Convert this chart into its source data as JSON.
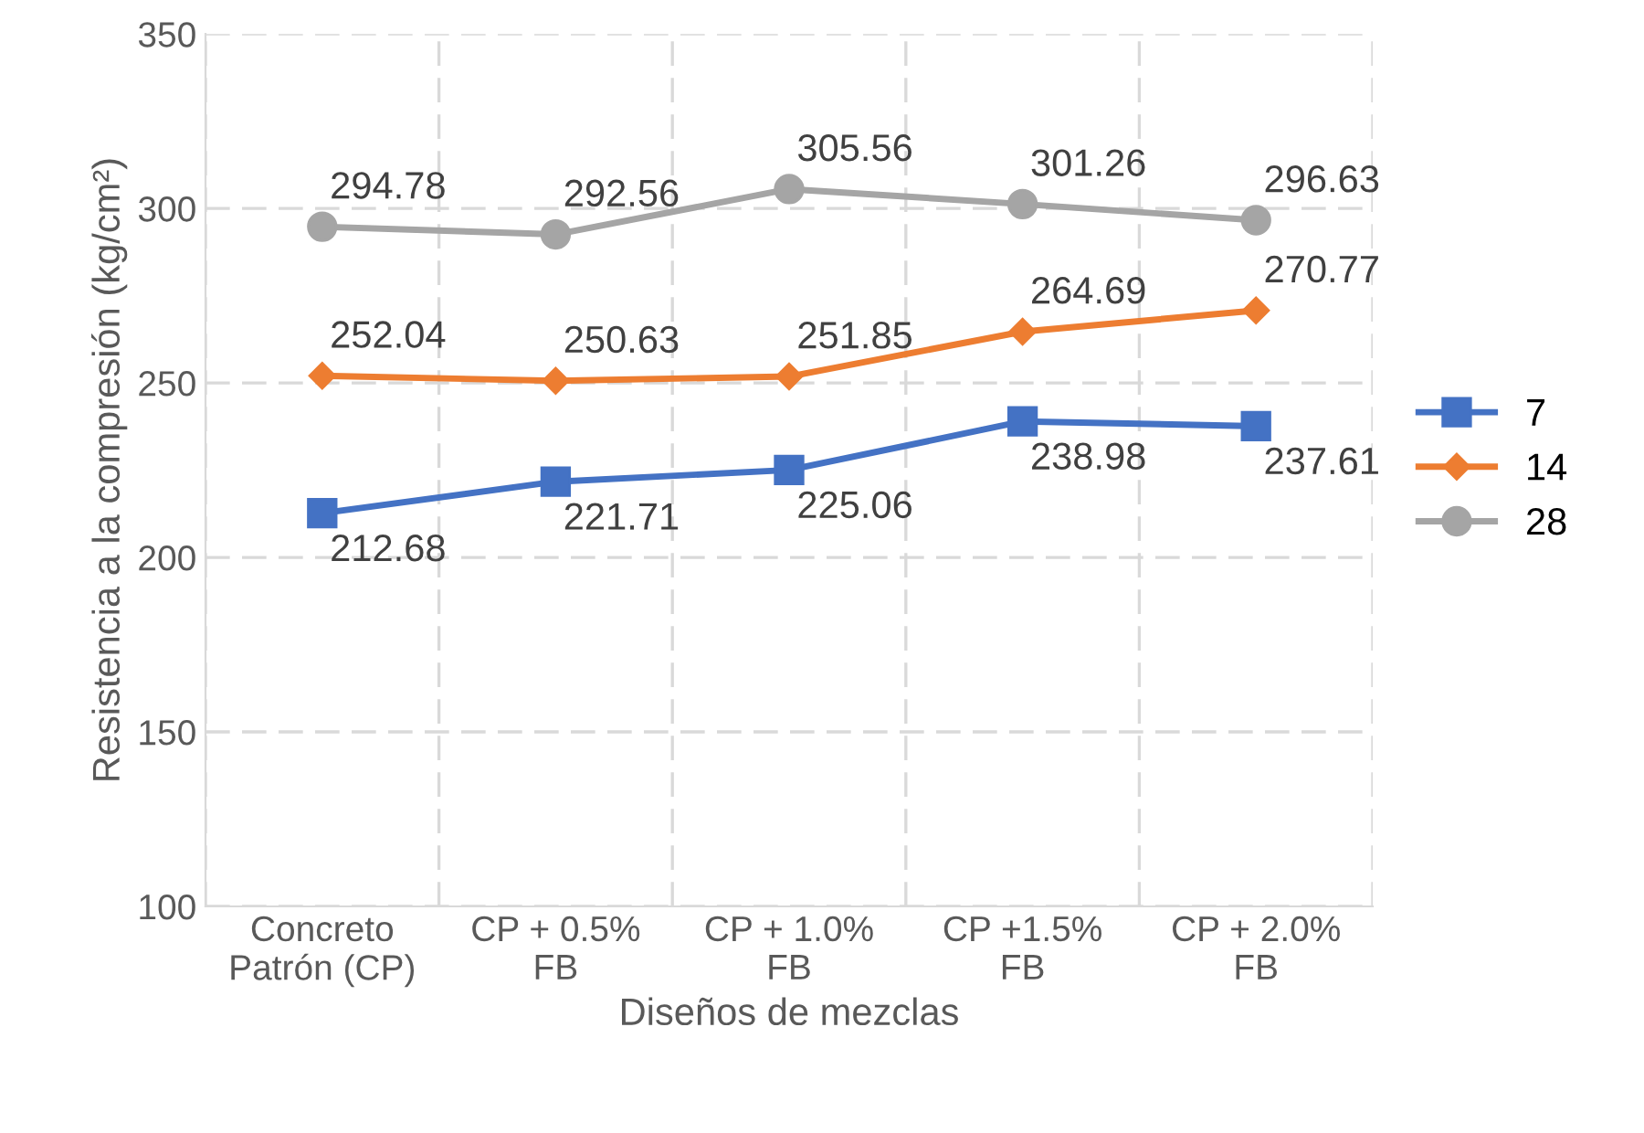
{
  "chart_data": {
    "type": "line",
    "xlabel": "Diseños de mezclas",
    "ylabel": "Resistencia a la compresión (kg/cm²)",
    "categories": [
      "Concreto\nPatrón (CP)",
      "CP + 0.5%\nFB",
      "CP + 1.0%\nFB",
      "CP +1.5%\nFB",
      "CP + 2.0%\nFB"
    ],
    "series": [
      {
        "name": "7",
        "color": "#4472c4",
        "marker": "square",
        "values": [
          212.68,
          221.71,
          225.06,
          238.98,
          237.61
        ]
      },
      {
        "name": "14",
        "color": "#ed7d31",
        "marker": "diamond",
        "values": [
          252.04,
          250.63,
          251.85,
          264.69,
          270.77
        ]
      },
      {
        "name": "28",
        "color": "#a5a5a5",
        "marker": "circle",
        "values": [
          294.78,
          292.56,
          305.56,
          301.26,
          296.63
        ]
      }
    ],
    "ylim": [
      100,
      350
    ],
    "yticks": [
      100,
      150,
      200,
      250,
      300,
      350
    ],
    "grid": true,
    "legend": "right",
    "data_labels": true,
    "line_style": "solid"
  }
}
